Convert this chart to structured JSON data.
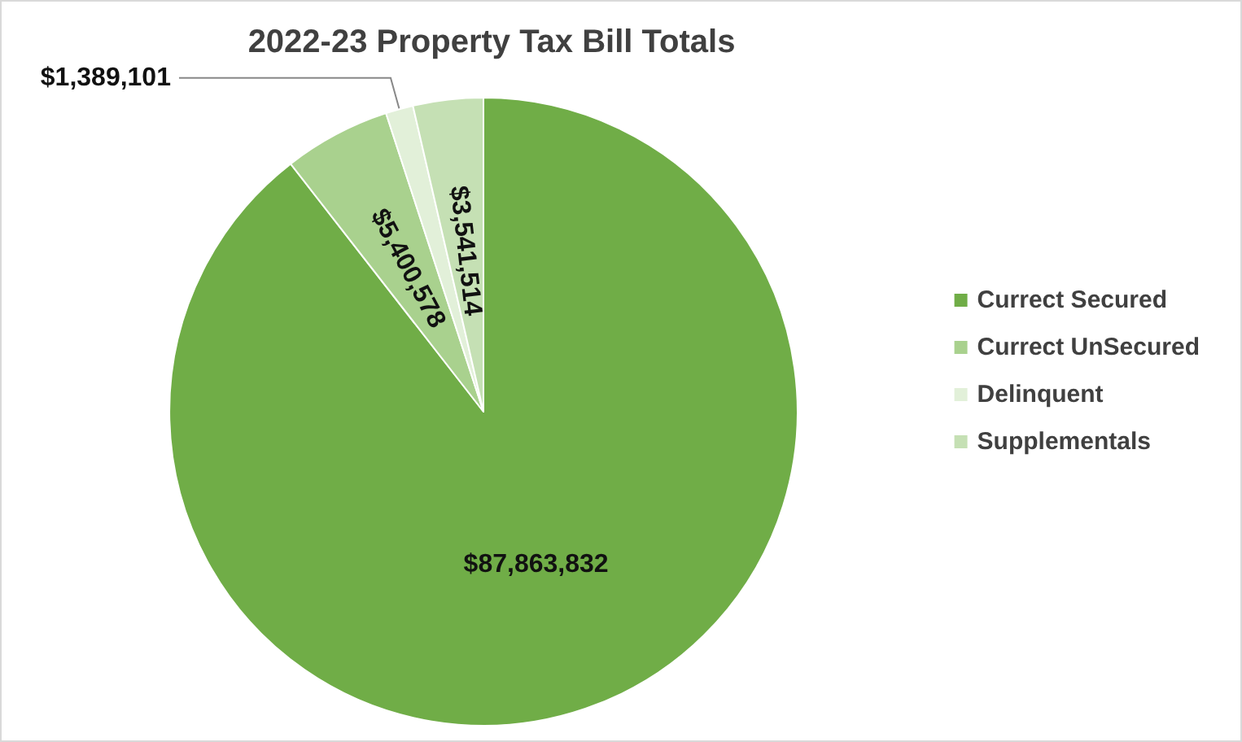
{
  "chart_data": {
    "type": "pie",
    "title": "2022-23 Property Tax Bill Totals",
    "categories": [
      "Currect Secured",
      "Currect UnSecured",
      "Delinquent",
      "Supplementals"
    ],
    "values": [
      87863832,
      5400578,
      1389101,
      3541514
    ],
    "colors": [
      "#70ad47",
      "#a9d18e",
      "#e2f0d9",
      "#c5e0b4"
    ],
    "value_labels": [
      "$87,863,832",
      "$5,400,578",
      "$1,389,101",
      "$3,541,514"
    ],
    "legend": "right"
  }
}
